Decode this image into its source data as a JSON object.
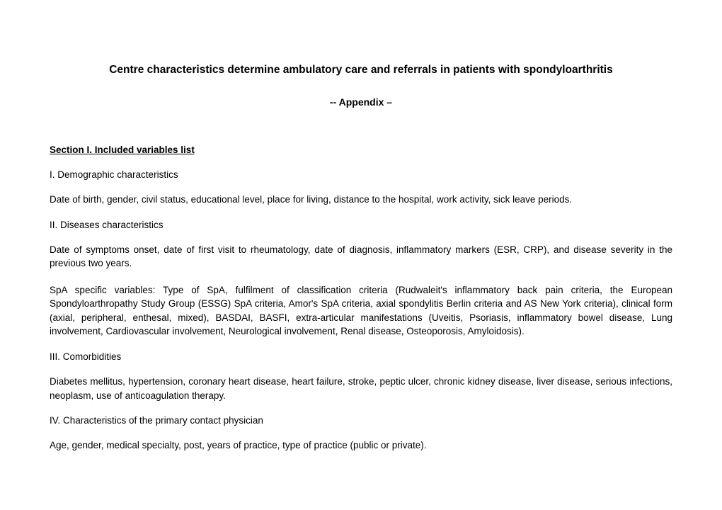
{
  "document": {
    "title": "Centre characteristics determine ambulatory care and referrals in patients with spondyloarthritis",
    "subtitle": "-- Appendix –",
    "section_header": "Section I. Included variables list",
    "subsections": [
      {
        "header": "I. Demographic characteristics",
        "paragraphs": [
          "Date of birth, gender, civil status, educational level, place for living, distance to the hospital, work activity, sick leave periods."
        ]
      },
      {
        "header": "II. Diseases characteristics",
        "paragraphs": [
          "Date of symptoms onset, date of first visit to rheumatology, date of diagnosis, inflammatory markers (ESR, CRP), and disease severity in the previous two years.",
          "SpA specific variables: Type of SpA, fulfilment of classification criteria (Rudwaleit's inflammatory back pain criteria, the European Spondyloarthropathy Study Group (ESSG) SpA criteria, Amor's SpA criteria, axial spondylitis Berlin criteria and AS New York criteria), clinical form (axial, peripheral, enthesal, mixed), BASDAI, BASFI, extra-articular manifestations (Uveitis, Psoriasis, inflammatory bowel disease, Lung involvement, Cardiovascular involvement, Neurological involvement, Renal disease, Osteoporosis, Amyloidosis)."
        ]
      },
      {
        "header": "III. Comorbidities",
        "paragraphs": [
          "Diabetes mellitus, hypertension, coronary heart disease, heart failure, stroke, peptic ulcer, chronic kidney disease, liver disease, serious infections, neoplasm, use of anticoagulation therapy."
        ]
      },
      {
        "header": "IV. Characteristics of the primary contact physician",
        "paragraphs": [
          "Age, gender, medical specialty, post, years of practice, type of practice (public or private)."
        ]
      }
    ],
    "colors": {
      "background": "#ffffff",
      "text": "#000000"
    },
    "typography": {
      "title_fontsize": 15.5,
      "subtitle_fontsize": 14,
      "body_fontsize": 13.5,
      "font_family": "Verdana"
    }
  }
}
